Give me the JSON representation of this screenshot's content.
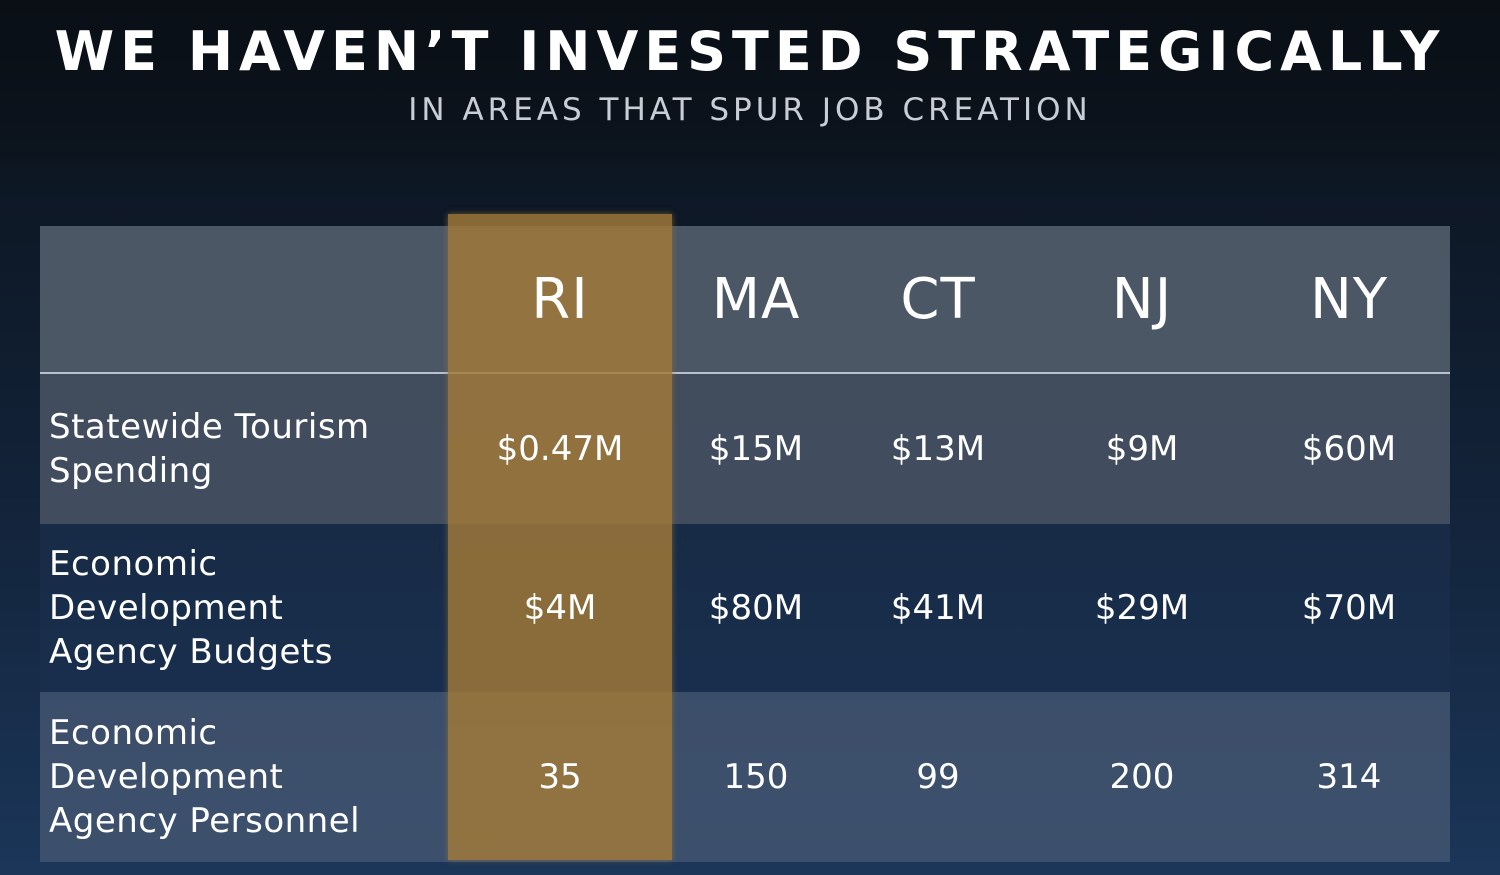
{
  "title": "WE HAVEN’T INVESTED STRATEGICALLY",
  "subtitle": "IN AREAS THAT SPUR JOB CREATION",
  "colors": {
    "highlight": "#a47a38",
    "header_row": "#4c5766",
    "background_top": "#0a1017",
    "background_bottom": "#1b3659"
  },
  "chart_data": {
    "type": "table",
    "title": "WE HAVEN’T INVESTED STRATEGICALLY",
    "subtitle": "IN AREAS THAT SPUR JOB CREATION",
    "highlighted_column": "RI",
    "columns": [
      "RI",
      "MA",
      "CT",
      "NJ",
      "NY"
    ],
    "rows": [
      {
        "label": "Statewide Tourism\nSpending",
        "values": [
          "$0.47M",
          "$15M",
          "$13M",
          "$9M",
          "$60M"
        ]
      },
      {
        "label": "Economic\nDevelopment\nAgency Budgets",
        "values": [
          "$4M",
          "$80M",
          "$41M",
          "$29M",
          "$70M"
        ]
      },
      {
        "label": "Economic\nDevelopment\nAgency Personnel",
        "values": [
          "35",
          "150",
          "99",
          "200",
          "314"
        ]
      }
    ]
  }
}
